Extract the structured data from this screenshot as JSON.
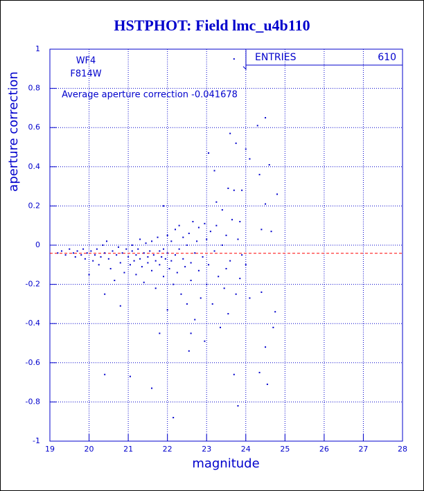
{
  "chart_data": {
    "type": "scatter",
    "title": "HSTPHOT: Field lmc_u4b110",
    "xlabel": "magnitude",
    "ylabel": "aperture correction",
    "annotations": [
      "WF4",
      "F814W",
      "Average aperture correction -0.041678"
    ],
    "stats": {
      "label": "ENTRIES",
      "value": "610"
    },
    "reference_line": -0.041678,
    "reference_color": "#ff0000",
    "color": "#0000cc",
    "grid": true,
    "xlim": [
      19,
      28
    ],
    "ylim": [
      -1,
      1
    ],
    "xticks": [
      19,
      20,
      21,
      22,
      23,
      24,
      25,
      26,
      27,
      28
    ],
    "yticks": [
      -1,
      -0.8,
      -0.6,
      -0.4,
      -0.2,
      0,
      0.2,
      0.4,
      0.6,
      0.8,
      1
    ],
    "x": [
      23.7,
      24.3,
      24.5,
      23.6,
      23.75,
      24.0,
      23.05,
      24.1,
      24.6,
      23.2,
      24.35,
      23.55,
      23.7,
      23.9,
      24.8,
      24.5,
      23.25,
      21.9,
      23.4,
      23.85,
      24.4,
      24.65,
      20.4,
      21.05,
      21.6,
      22.15,
      23.8,
      23.7,
      24.35,
      24.55,
      24.5,
      22.55,
      22.95,
      22.6,
      21.8,
      24.7,
      24.75,
      24.1,
      24.4,
      23.85,
      20.8,
      20.4,
      22.7,
      23.55,
      23.5,
      22.0,
      19.2,
      19.3,
      19.4,
      19.5,
      19.6,
      19.65,
      19.7,
      19.8,
      19.85,
      19.9,
      19.95,
      20.0,
      20.05,
      20.1,
      20.15,
      20.2,
      20.25,
      20.3,
      20.35,
      20.4,
      20.45,
      20.5,
      20.55,
      20.6,
      20.65,
      20.7,
      20.75,
      20.8,
      20.85,
      20.9,
      20.95,
      21.0,
      21.05,
      21.1,
      21.1,
      21.15,
      21.2,
      21.2,
      21.25,
      21.3,
      21.3,
      21.35,
      21.4,
      21.4,
      21.45,
      21.5,
      21.5,
      21.55,
      21.6,
      21.6,
      21.65,
      21.7,
      21.7,
      21.75,
      21.8,
      21.8,
      21.85,
      21.9,
      21.9,
      21.95,
      22.0,
      22.0,
      22.05,
      22.1,
      22.1,
      22.15,
      22.2,
      22.2,
      22.25,
      22.3,
      22.3,
      22.35,
      22.4,
      22.4,
      22.45,
      22.5,
      22.5,
      22.55,
      22.6,
      22.6,
      22.65,
      22.7,
      22.75,
      22.8,
      22.8,
      22.85,
      22.9,
      22.95,
      23.0,
      23.0,
      23.05,
      23.1,
      23.15,
      23.2,
      23.25,
      23.3,
      23.35,
      23.4,
      23.45,
      23.5,
      23.6,
      23.65,
      23.75,
      23.8,
      23.9,
      24.0
    ],
    "values": [
      0.95,
      0.61,
      0.65,
      0.57,
      0.52,
      0.49,
      0.47,
      0.44,
      0.41,
      0.38,
      0.36,
      0.29,
      0.28,
      0.28,
      0.26,
      0.21,
      0.22,
      0.2,
      0.18,
      0.12,
      0.08,
      0.07,
      -0.66,
      -0.67,
      -0.73,
      -0.88,
      -0.82,
      -0.66,
      -0.65,
      -0.71,
      -0.52,
      -0.54,
      -0.49,
      -0.45,
      -0.45,
      -0.42,
      -0.34,
      -0.27,
      -0.24,
      -0.17,
      -0.31,
      -0.25,
      -0.38,
      -0.35,
      -0.12,
      -0.33,
      -0.04,
      -0.03,
      -0.05,
      -0.02,
      -0.04,
      -0.06,
      -0.03,
      -0.05,
      -0.02,
      -0.07,
      -0.04,
      -0.15,
      -0.03,
      -0.08,
      -0.05,
      -0.02,
      -0.1,
      -0.06,
      0.0,
      -0.04,
      0.02,
      -0.07,
      -0.12,
      -0.03,
      -0.18,
      -0.05,
      -0.01,
      -0.09,
      -0.04,
      -0.14,
      -0.02,
      -0.06,
      -0.1,
      -0.03,
      0.0,
      -0.08,
      -0.05,
      -0.15,
      -0.02,
      -0.07,
      0.03,
      -0.11,
      -0.04,
      -0.19,
      0.01,
      -0.06,
      -0.09,
      -0.03,
      -0.13,
      0.02,
      -0.05,
      -0.08,
      -0.22,
      0.04,
      -0.03,
      -0.1,
      -0.06,
      -0.02,
      -0.16,
      -0.07,
      0.05,
      -0.04,
      -0.12,
      -0.08,
      0.02,
      -0.2,
      -0.05,
      0.08,
      -0.14,
      -0.02,
      0.1,
      -0.25,
      -0.07,
      0.04,
      -0.11,
      0.0,
      -0.3,
      0.06,
      -0.09,
      -0.18,
      0.12,
      -0.04,
      0.02,
      -0.13,
      0.09,
      -0.27,
      -0.06,
      0.11,
      -0.2,
      0.03,
      -0.1,
      0.07,
      -0.3,
      -0.03,
      0.1,
      -0.16,
      -0.42,
      0.0,
      -0.22,
      0.05,
      -0.08,
      0.13,
      -0.25,
      0.03,
      -0.05,
      -0.1
    ]
  }
}
